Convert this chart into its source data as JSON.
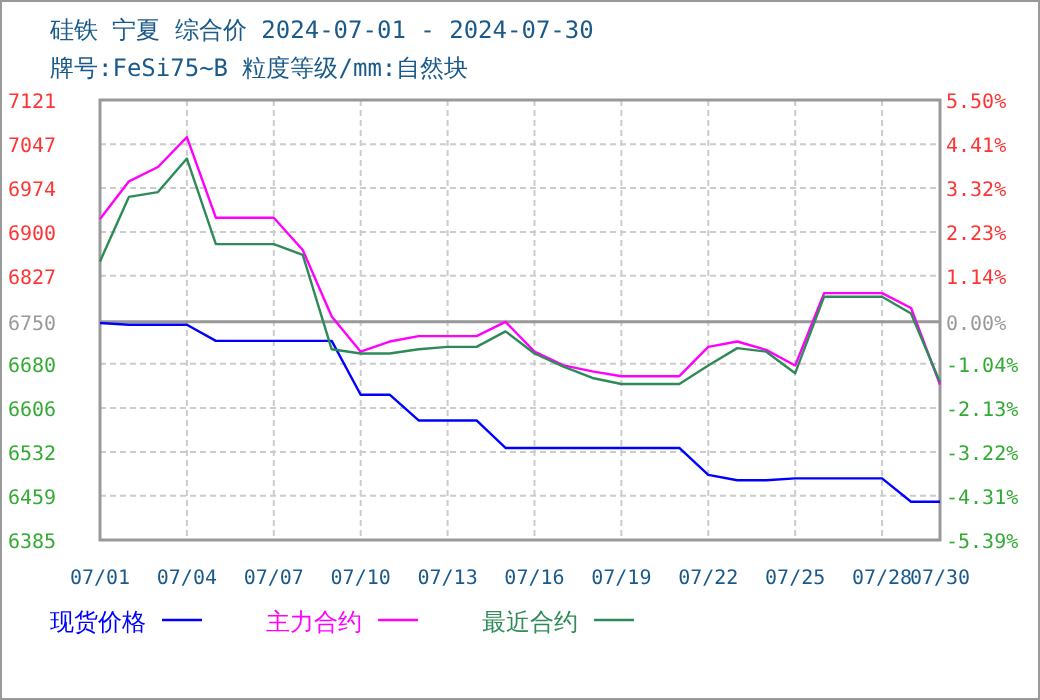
{
  "chart_data": {
    "type": "line",
    "title": "硅铁 宁夏 综合价 2024-07-01 - 2024-07-30",
    "subtitle": "牌号:FeSi75~B 粒度等级/mm:自然块",
    "x": [
      "2024-07-01",
      "2024-07-02",
      "2024-07-03",
      "2024-07-04",
      "2024-07-05",
      "2024-07-06",
      "2024-07-07",
      "2024-07-08",
      "2024-07-09",
      "2024-07-10",
      "2024-07-11",
      "2024-07-12",
      "2024-07-13",
      "2024-07-14",
      "2024-07-15",
      "2024-07-16",
      "2024-07-17",
      "2024-07-18",
      "2024-07-19",
      "2024-07-20",
      "2024-07-21",
      "2024-07-22",
      "2024-07-23",
      "2024-07-24",
      "2024-07-25",
      "2024-07-26",
      "2024-07-27",
      "2024-07-28",
      "2024-07-29",
      "2024-07-30"
    ],
    "series": [
      {
        "name": "现货价格",
        "color": "#0000ff",
        "values": [
          6748,
          6745,
          6745,
          6745,
          6718,
          6718,
          6718,
          6718,
          6718,
          6628,
          6628,
          6585,
          6585,
          6585,
          6539,
          6539,
          6539,
          6539,
          6539,
          6539,
          6539,
          6494,
          6485,
          6485,
          6488,
          6488,
          6488,
          6488,
          6449,
          6449
        ]
      },
      {
        "name": "主力合约",
        "color": "#ff00ff",
        "values": [
          6922,
          6985,
          7009,
          7059,
          6924,
          6924,
          6924,
          6870,
          6759,
          6700,
          6717,
          6726,
          6726,
          6726,
          6750,
          6700,
          6677,
          6667,
          6659,
          6659,
          6659,
          6708,
          6717,
          6703,
          6677,
          6798,
          6798,
          6798,
          6773,
          6645
        ]
      },
      {
        "name": "最近合约",
        "color": "#2e8b57",
        "values": [
          6851,
          6959,
          6967,
          7023,
          6880,
          6880,
          6880,
          6862,
          6704,
          6697,
          6697,
          6704,
          6708,
          6708,
          6734,
          6697,
          6675,
          6656,
          6646,
          6646,
          6646,
          6677,
          6706,
          6700,
          6664,
          6792,
          6792,
          6792,
          6764,
          6649
        ]
      }
    ],
    "xlim": [
      "2024-07-01",
      "2024-07-30"
    ],
    "xticks": [
      {
        "value": "2024-07-01",
        "label": "07/01"
      },
      {
        "value": "2024-07-04",
        "label": "07/04"
      },
      {
        "value": "2024-07-07",
        "label": "07/07"
      },
      {
        "value": "2024-07-10",
        "label": "07/10"
      },
      {
        "value": "2024-07-13",
        "label": "07/13"
      },
      {
        "value": "2024-07-16",
        "label": "07/16"
      },
      {
        "value": "2024-07-19",
        "label": "07/19"
      },
      {
        "value": "2024-07-22",
        "label": "07/22"
      },
      {
        "value": "2024-07-25",
        "label": "07/25"
      },
      {
        "value": "2024-07-28",
        "label": "07/28"
      },
      {
        "value": "2024-07-30",
        "label": "07/30"
      }
    ],
    "ylim": [
      6385,
      7121
    ],
    "yticks": [
      6385,
      6459,
      6532,
      6606,
      6680,
      6750,
      6827,
      6900,
      6974,
      7047,
      7121
    ],
    "y2lim": [
      -5.39,
      5.5
    ],
    "y2ticks": [
      {
        "value": -5.39,
        "label": "-5.39%"
      },
      {
        "value": -4.31,
        "label": "-4.31%"
      },
      {
        "value": -3.22,
        "label": "-3.22%"
      },
      {
        "value": -2.13,
        "label": "-2.13%"
      },
      {
        "value": -1.04,
        "label": "-1.04%"
      },
      {
        "value": 0,
        "label": "0.00%"
      },
      {
        "value": 1.14,
        "label": "1.14%"
      },
      {
        "value": 2.23,
        "label": "2.23%"
      },
      {
        "value": 3.32,
        "label": "3.32%"
      },
      {
        "value": 4.41,
        "label": "4.41%"
      },
      {
        "value": 5.5,
        "label": "5.50%"
      }
    ],
    "ref_lines": [
      {
        "axis": "y",
        "value": 6750,
        "color": "#999999"
      }
    ],
    "grid": true,
    "legend": "bottom",
    "marker": "none",
    "line_style": "solid"
  }
}
